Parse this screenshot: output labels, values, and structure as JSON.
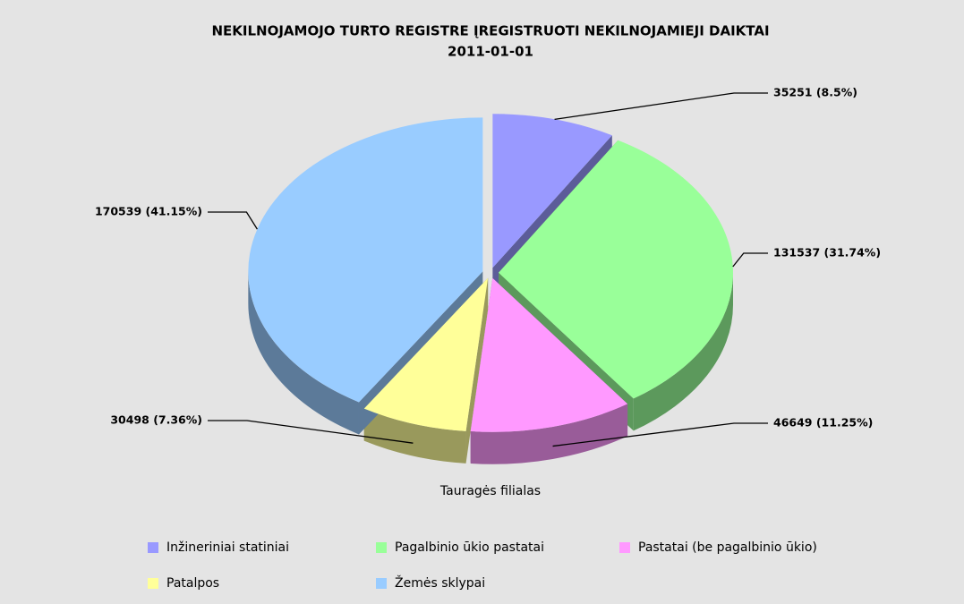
{
  "chart_data": {
    "type": "pie",
    "title": "NEKILNOJAMOJO TURTO REGISTRE ĮREGISTRUOTI NEKILNOJAMIEJI DAIKTAI",
    "subtitle": "2011-01-01",
    "caption": "Tauragės filialas",
    "categories": [
      "Inžineriniai statiniai",
      "Pagalbinio ūkio pastatai",
      "Pastatai (be pagalbinio ūkio)",
      "Patalpos",
      "Žemės sklypai"
    ],
    "values": [
      35251,
      131537,
      46649,
      30498,
      170539
    ],
    "value_labels": [
      "35251 (8.5%)",
      "131537 (31.74%)",
      "46649 (11.25%)",
      "30498 (7.36%)",
      "170539 (41.15%)"
    ],
    "colors": [
      "#9999ff",
      "#99ff99",
      "#ff99ff",
      "#ffff99",
      "#99ccff"
    ],
    "legend": "bottom"
  }
}
